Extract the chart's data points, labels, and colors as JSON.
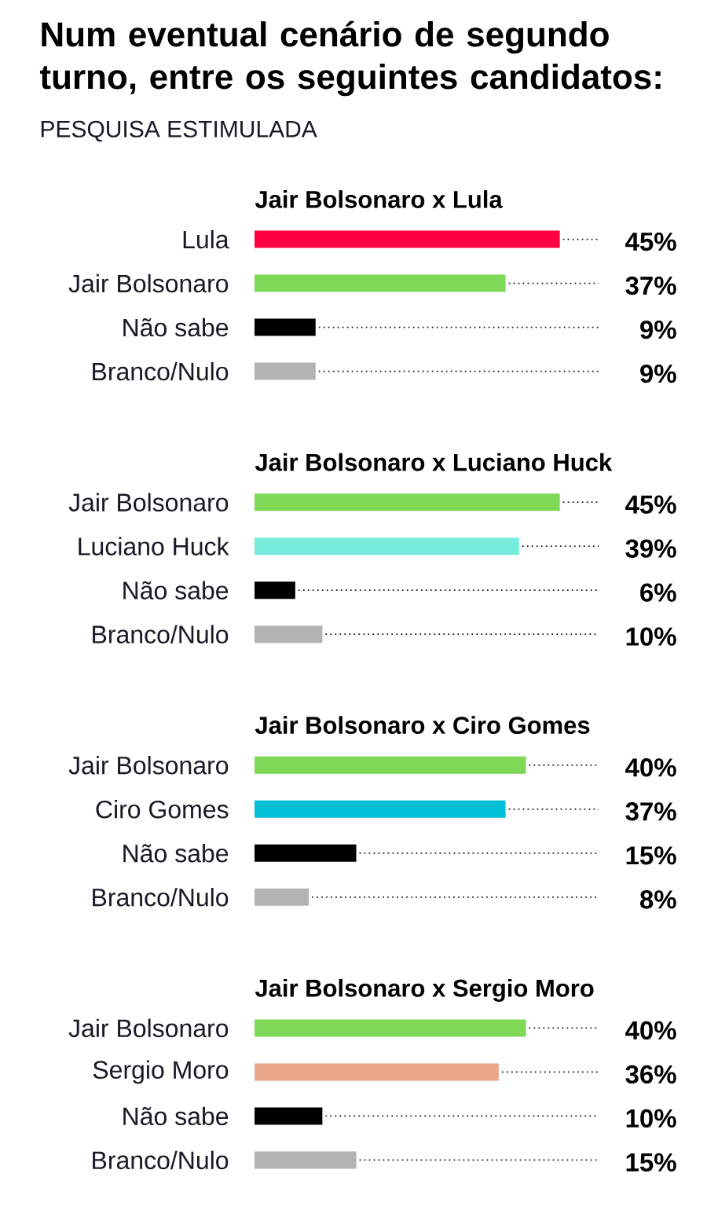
{
  "chart_data": [
    {
      "type": "other",
      "title": "Num eventual cenário de segundo turno, entre os seguintes candidatos:",
      "subtitle": "PESQUISA ESTIMULADA"
    },
    {
      "type": "bar",
      "orientation": "horizontal",
      "title": "Jair Bolsonaro x Lula",
      "categories": [
        "Lula",
        "Jair Bolsonaro",
        "Não sabe",
        "Branco/Nulo"
      ],
      "values": [
        45,
        37,
        9,
        9
      ],
      "colors": [
        "#ff0040",
        "#7ed957",
        "#000000",
        "#b3b3b3"
      ],
      "value_labels": [
        "45%",
        "37%",
        "9%",
        "9%"
      ],
      "tick_labels": "y"
    },
    {
      "type": "bar",
      "orientation": "horizontal",
      "title": "Jair Bolsonaro x Luciano Huck",
      "categories": [
        "Jair Bolsonaro",
        "Luciano Huck",
        "Não sabe",
        "Branco/Nulo"
      ],
      "values": [
        45,
        39,
        6,
        10
      ],
      "colors": [
        "#7ed957",
        "#78ecdc",
        "#000000",
        "#b3b3b3"
      ],
      "value_labels": [
        "45%",
        "39%",
        "6%",
        "10%"
      ],
      "tick_labels": "y"
    },
    {
      "type": "bar",
      "orientation": "horizontal",
      "title": "Jair Bolsonaro x Ciro Gomes",
      "categories": [
        "Jair Bolsonaro",
        "Ciro Gomes",
        "Não sabe",
        "Branco/Nulo"
      ],
      "values": [
        40,
        37,
        15,
        8
      ],
      "colors": [
        "#7ed957",
        "#00c0d7",
        "#000000",
        "#b3b3b3"
      ],
      "value_labels": [
        "40%",
        "37%",
        "15%",
        "8%"
      ],
      "tick_labels": "y"
    },
    {
      "type": "bar",
      "orientation": "horizontal",
      "title": "Jair Bolsonaro x Sergio Moro",
      "categories": [
        "Jair Bolsonaro",
        "Sergio Moro",
        "Não sabe",
        "Branco/Nulo"
      ],
      "values": [
        40,
        36,
        10,
        15
      ],
      "colors": [
        "#7ed957",
        "#e9a688",
        "#000000",
        "#b3b3b3"
      ],
      "value_labels": [
        "40%",
        "36%",
        "10%",
        "15%"
      ],
      "tick_labels": "y"
    }
  ]
}
